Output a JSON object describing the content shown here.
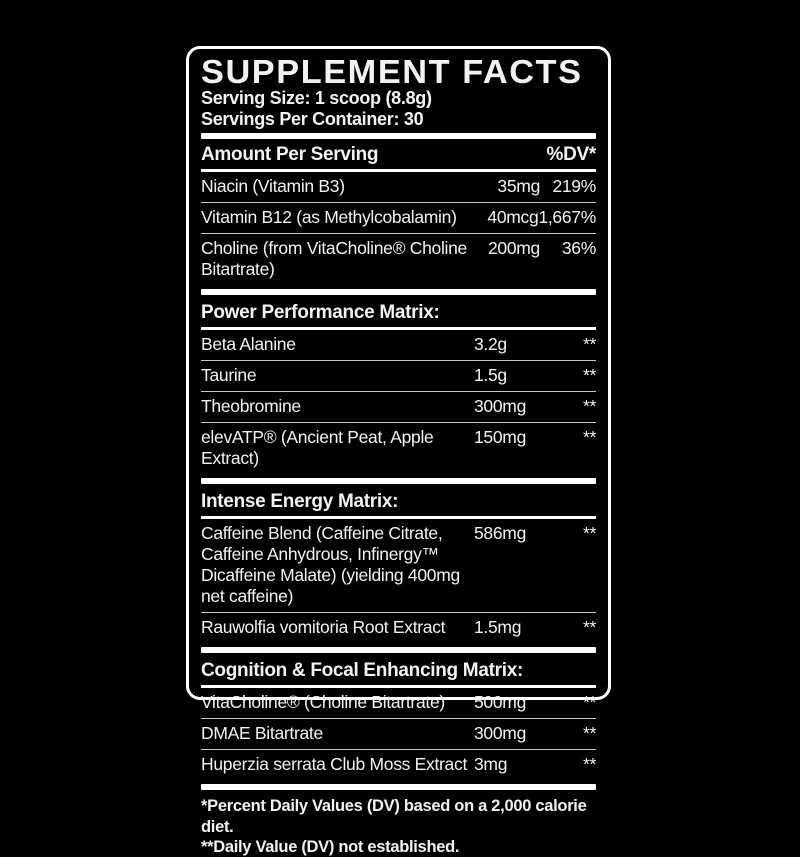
{
  "label": {
    "title": "SUPPLEMENT FACTS",
    "serving_size": "Serving Size: 1 scoop (8.8g)",
    "servings_per_container": "Servings Per Container: 30",
    "columns": {
      "left": "Amount Per Serving",
      "right": "%DV*"
    },
    "vitamins": [
      {
        "name": "Niacin (Vitamin B3)",
        "amount": "35mg",
        "dv": "219%"
      },
      {
        "name": "Vitamin B12 (as Methylcobalamin)",
        "amount": "40mcg",
        "dv": "1,667%"
      },
      {
        "name": "Choline (from VitaCholine® Choline Bitartrate)",
        "amount": "200mg",
        "dv": "36%"
      }
    ],
    "sections": [
      {
        "heading": "Power Performance Matrix:",
        "rows": [
          {
            "name": "Beta Alanine",
            "amount": "3.2g",
            "dv": "**"
          },
          {
            "name": "Taurine",
            "amount": "1.5g",
            "dv": "**"
          },
          {
            "name": "Theobromine",
            "amount": "300mg",
            "dv": "**"
          },
          {
            "name": "elevATP® (Ancient Peat, Apple Extract)",
            "amount": "150mg",
            "dv": "**"
          }
        ]
      },
      {
        "heading": "Intense Energy Matrix:",
        "rows": [
          {
            "name": "Caffeine Blend (Caffeine Citrate, Caffeine Anhydrous, Infinergy™ Dicaffeine Malate) (yielding 400mg net caffeine)",
            "amount": "586mg",
            "dv": "**"
          },
          {
            "name": "Rauwolfia vomitoria Root Extract",
            "amount": "1.5mg",
            "dv": "**"
          }
        ]
      },
      {
        "heading": "Cognition & Focal Enhancing Matrix:",
        "rows": [
          {
            "name": "VitaCholine® (Choline Bitartrate)",
            "amount": "500mg",
            "dv": "**"
          },
          {
            "name": "DMAE Bitartrate",
            "amount": "300mg",
            "dv": "**"
          },
          {
            "name": "Huperzia serrata Club Moss Extract",
            "amount": "3mg",
            "dv": "**"
          }
        ]
      }
    ],
    "footnotes": [
      "*Percent Daily Values (DV) based on a 2,000 calorie diet.",
      "**Daily Value (DV) not established."
    ],
    "colors": {
      "background": "#000000",
      "panel_background": "#000000",
      "border": "#ffffff",
      "text": "#f2f2f2",
      "hairline": "#c9c9c9"
    }
  }
}
